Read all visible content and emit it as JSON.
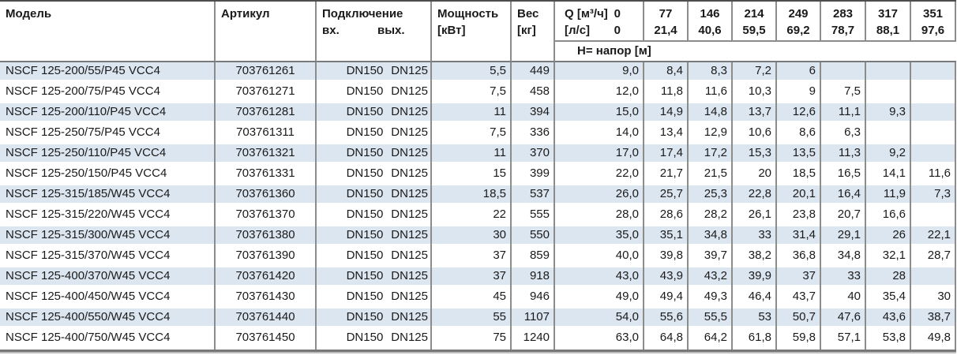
{
  "table": {
    "columns": {
      "model": "Модель",
      "article": "Артикул",
      "connection": "Подключение",
      "connection_in": "вх.",
      "connection_out": "вых.",
      "power_line1": "Мощность",
      "power_line2": "[кВт]",
      "weight_line1": "Вес",
      "weight_line2": "[кг]",
      "q_line1_label": "Q [м³/ч]",
      "q_line1_value": "0",
      "q_line2_label": "[л/с]",
      "q_line2_value": "0",
      "head_row_label": "Н= напор [м]"
    },
    "flow_columns": [
      {
        "m3h": "77",
        "ls": "21,4"
      },
      {
        "m3h": "146",
        "ls": "40,6"
      },
      {
        "m3h": "214",
        "ls": "59,5"
      },
      {
        "m3h": "249",
        "ls": "69,2"
      },
      {
        "m3h": "283",
        "ls": "78,7"
      },
      {
        "m3h": "317",
        "ls": "88,1"
      },
      {
        "m3h": "351",
        "ls": "97,6"
      }
    ],
    "rows": [
      {
        "model": "NSCF 125-200/55/P45 VCC4",
        "article": "703761261",
        "dn_in": "DN150",
        "dn_out": "DN125",
        "power": "5,5",
        "weight": "449",
        "head": [
          "9,0",
          "8,4",
          "8,3",
          "7,2",
          "6",
          "",
          "",
          ""
        ]
      },
      {
        "model": "NSCF 125-200/75/P45 VCC4",
        "article": "703761271",
        "dn_in": "DN150",
        "dn_out": "DN125",
        "power": "7,5",
        "weight": "458",
        "head": [
          "12,0",
          "11,8",
          "11,6",
          "10,3",
          "9",
          "7,5",
          "",
          ""
        ]
      },
      {
        "model": "NSCF 125-200/110/P45 VCC4",
        "article": "703761281",
        "dn_in": "DN150",
        "dn_out": "DN125",
        "power": "11",
        "weight": "394",
        "head": [
          "15,0",
          "14,9",
          "14,8",
          "13,7",
          "12,6",
          "11,1",
          "9,3",
          ""
        ]
      },
      {
        "model": "NSCF 125-250/75/P45 VCC4",
        "article": "703761311",
        "dn_in": "DN150",
        "dn_out": "DN125",
        "power": "7,5",
        "weight": "336",
        "head": [
          "14,0",
          "13,4",
          "12,9",
          "10,6",
          "8,6",
          "6,3",
          "",
          ""
        ]
      },
      {
        "model": "NSCF 125-250/110/P45 VCC4",
        "article": "703761321",
        "dn_in": "DN150",
        "dn_out": "DN125",
        "power": "11",
        "weight": "370",
        "head": [
          "17,0",
          "17,4",
          "17,2",
          "15,3",
          "13,5",
          "11,3",
          "9,2",
          ""
        ]
      },
      {
        "model": "NSCF 125-250/150/P45 VCC4",
        "article": "703761331",
        "dn_in": "DN150",
        "dn_out": "DN125",
        "power": "15",
        "weight": "399",
        "head": [
          "22,0",
          "21,7",
          "21,5",
          "20",
          "18,5",
          "16,5",
          "14,1",
          "11,6"
        ]
      },
      {
        "model": "NSCF 125-315/185/W45 VCC4",
        "article": "703761360",
        "dn_in": "DN150",
        "dn_out": "DN125",
        "power": "18,5",
        "weight": "537",
        "head": [
          "26,0",
          "25,7",
          "25,3",
          "22,8",
          "20,1",
          "16,4",
          "11,9",
          "7,3"
        ]
      },
      {
        "model": "NSCF 125-315/220/W45 VCC4",
        "article": "703761370",
        "dn_in": "DN150",
        "dn_out": "DN125",
        "power": "22",
        "weight": "555",
        "head": [
          "28,0",
          "28,6",
          "28,2",
          "26,1",
          "23,8",
          "20,7",
          "16,6",
          ""
        ]
      },
      {
        "model": "NSCF 125-315/300/W45 VCC4",
        "article": "703761380",
        "dn_in": "DN150",
        "dn_out": "DN125",
        "power": "30",
        "weight": "550",
        "head": [
          "35,0",
          "35,1",
          "34,8",
          "33",
          "31,4",
          "29,1",
          "26",
          "22,1"
        ]
      },
      {
        "model": "NSCF 125-315/370/W45 VCC4",
        "article": "703761390",
        "dn_in": "DN150",
        "dn_out": "DN125",
        "power": "37",
        "weight": "859",
        "head": [
          "40,0",
          "39,8",
          "39,7",
          "38,2",
          "36,8",
          "34,8",
          "32,1",
          "28,7"
        ]
      },
      {
        "model": "NSCF 125-400/370/W45 VCC4",
        "article": "703761420",
        "dn_in": "DN150",
        "dn_out": "DN125",
        "power": "37",
        "weight": "918",
        "head": [
          "43,0",
          "43,9",
          "43,2",
          "39,9",
          "37",
          "33",
          "28",
          ""
        ]
      },
      {
        "model": "NSCF 125-400/450/W45 VCC4",
        "article": "703761430",
        "dn_in": "DN150",
        "dn_out": "DN125",
        "power": "45",
        "weight": "946",
        "head": [
          "49,0",
          "49,4",
          "49,3",
          "46,4",
          "43,7",
          "40",
          "35,4",
          "30"
        ]
      },
      {
        "model": "NSCF 125-400/550/W45 VCC4",
        "article": "703761440",
        "dn_in": "DN150",
        "dn_out": "DN125",
        "power": "55",
        "weight": "1107",
        "head": [
          "54,0",
          "55,6",
          "55,5",
          "53",
          "50,7",
          "47,6",
          "43,6",
          "38,7"
        ]
      },
      {
        "model": "NSCF 125-400/750/W45 VCC4",
        "article": "703761450",
        "dn_in": "DN150",
        "dn_out": "DN125",
        "power": "75",
        "weight": "1240",
        "head": [
          "63,0",
          "64,8",
          "64,2",
          "61,8",
          "59,8",
          "57,1",
          "53,8",
          "49,8"
        ]
      }
    ]
  },
  "colors": {
    "row_alt_background": "#dce6f1",
    "grid_border": "#8c8c8c",
    "header_separator": "#7a7a7a",
    "top_border": "#4d4d4d",
    "text": "#1a1a1a"
  }
}
